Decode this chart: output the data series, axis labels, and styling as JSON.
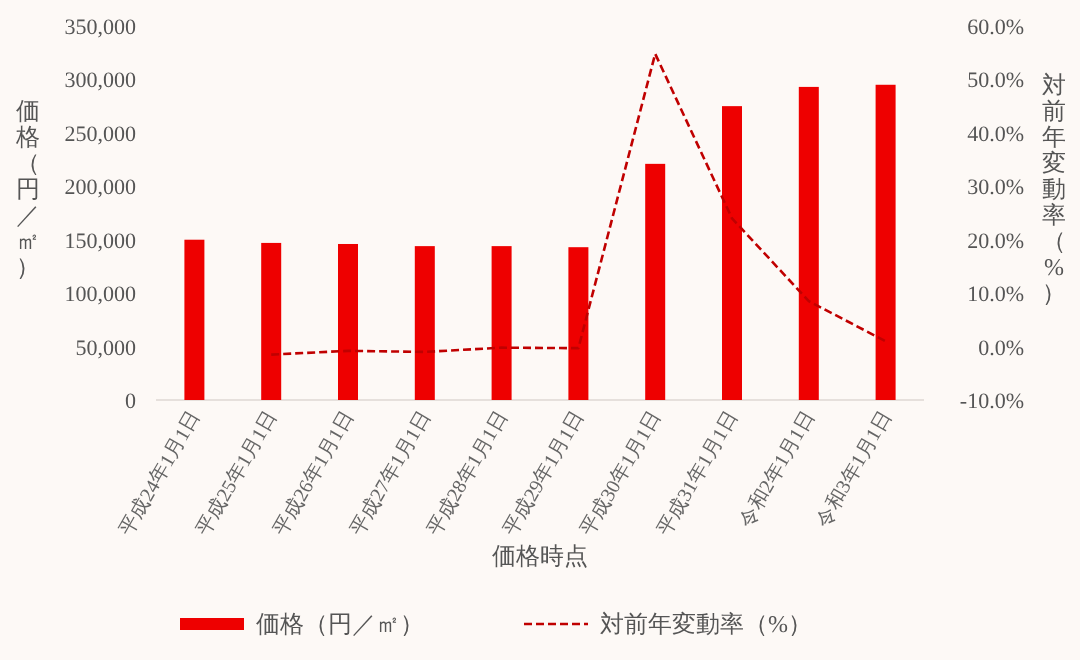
{
  "chart_data": {
    "type": "bar",
    "xlabel": "価格時点",
    "ylabel": "価格（円／㎡）",
    "y2label": "対前年変動率（%）",
    "categories": [
      "平成24年1月1日",
      "平成25年1月1日",
      "平成26年1月1日",
      "平成27年1月1日",
      "平成28年1月1日",
      "平成29年1月1日",
      "平成30年1月1日",
      "平成31年1月1日",
      "令和2年1月1日",
      "令和3年1月1日"
    ],
    "series": [
      {
        "name": "価格（円／㎡）",
        "color": "#ee0000",
        "values": [
          150000,
          147000,
          146000,
          144000,
          144000,
          143000,
          221000,
          275000,
          293000,
          295000
        ]
      },
      {
        "name": "対前年変動率（%）",
        "type": "line",
        "axis": "y2",
        "color": "#c00000",
        "line_style": "dashed",
        "marker": "none",
        "values": [
          null,
          -1.5,
          -0.8,
          -1.0,
          -0.2,
          -0.3,
          54.8,
          24.0,
          8.5,
          1.0
        ]
      }
    ],
    "ylim": [
      0,
      350000
    ],
    "yticks": [
      {
        "value": 0,
        "label": "0"
      },
      {
        "value": 50000,
        "label": "50,000"
      },
      {
        "value": 100000,
        "label": "100,000"
      },
      {
        "value": 150000,
        "label": "150,000"
      },
      {
        "value": 200000,
        "label": "200,000"
      },
      {
        "value": 250000,
        "label": "250,000"
      },
      {
        "value": 300000,
        "label": "300,000"
      },
      {
        "value": 350000,
        "label": "350,000"
      }
    ],
    "y2lim": [
      -10,
      60
    ],
    "y2ticks": [
      {
        "value": -10,
        "label": "-10.0%"
      },
      {
        "value": 0,
        "label": "0.0%"
      },
      {
        "value": 10,
        "label": "10.0%"
      },
      {
        "value": 20,
        "label": "20.0%"
      },
      {
        "value": 30,
        "label": "30.0%"
      },
      {
        "value": 40,
        "label": "40.0%"
      },
      {
        "value": 50,
        "label": "50.0%"
      },
      {
        "value": 60,
        "label": "60.0%"
      }
    ],
    "grid": false,
    "legend": "bottom"
  }
}
